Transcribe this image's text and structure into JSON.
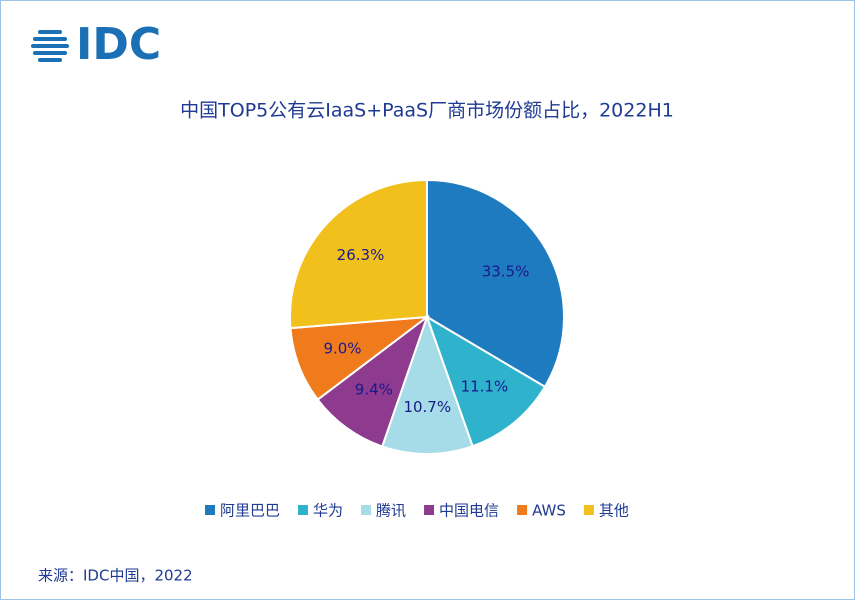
{
  "logo": "IDC",
  "chart_data": {
    "type": "pie",
    "title": "中国TOP5公有云IaaS+PaaS厂商市场份额占比，2022H1",
    "categories": [
      "阿里巴巴",
      "华为",
      "腾讯",
      "中国电信",
      "AWS",
      "其他"
    ],
    "values": [
      33.5,
      11.1,
      10.7,
      9.4,
      9.0,
      26.3
    ],
    "value_labels": [
      "33.5%",
      "11.1%",
      "10.7%",
      "9.4%",
      "9.0%",
      "26.3%"
    ],
    "colors": [
      "#1f7bbf",
      "#2fb3cc",
      "#a6dbe8",
      "#8e3a8e",
      "#f07b1d",
      "#f2c01c"
    ],
    "legend": "bottom",
    "source": "来源：IDC中国，2022"
  }
}
